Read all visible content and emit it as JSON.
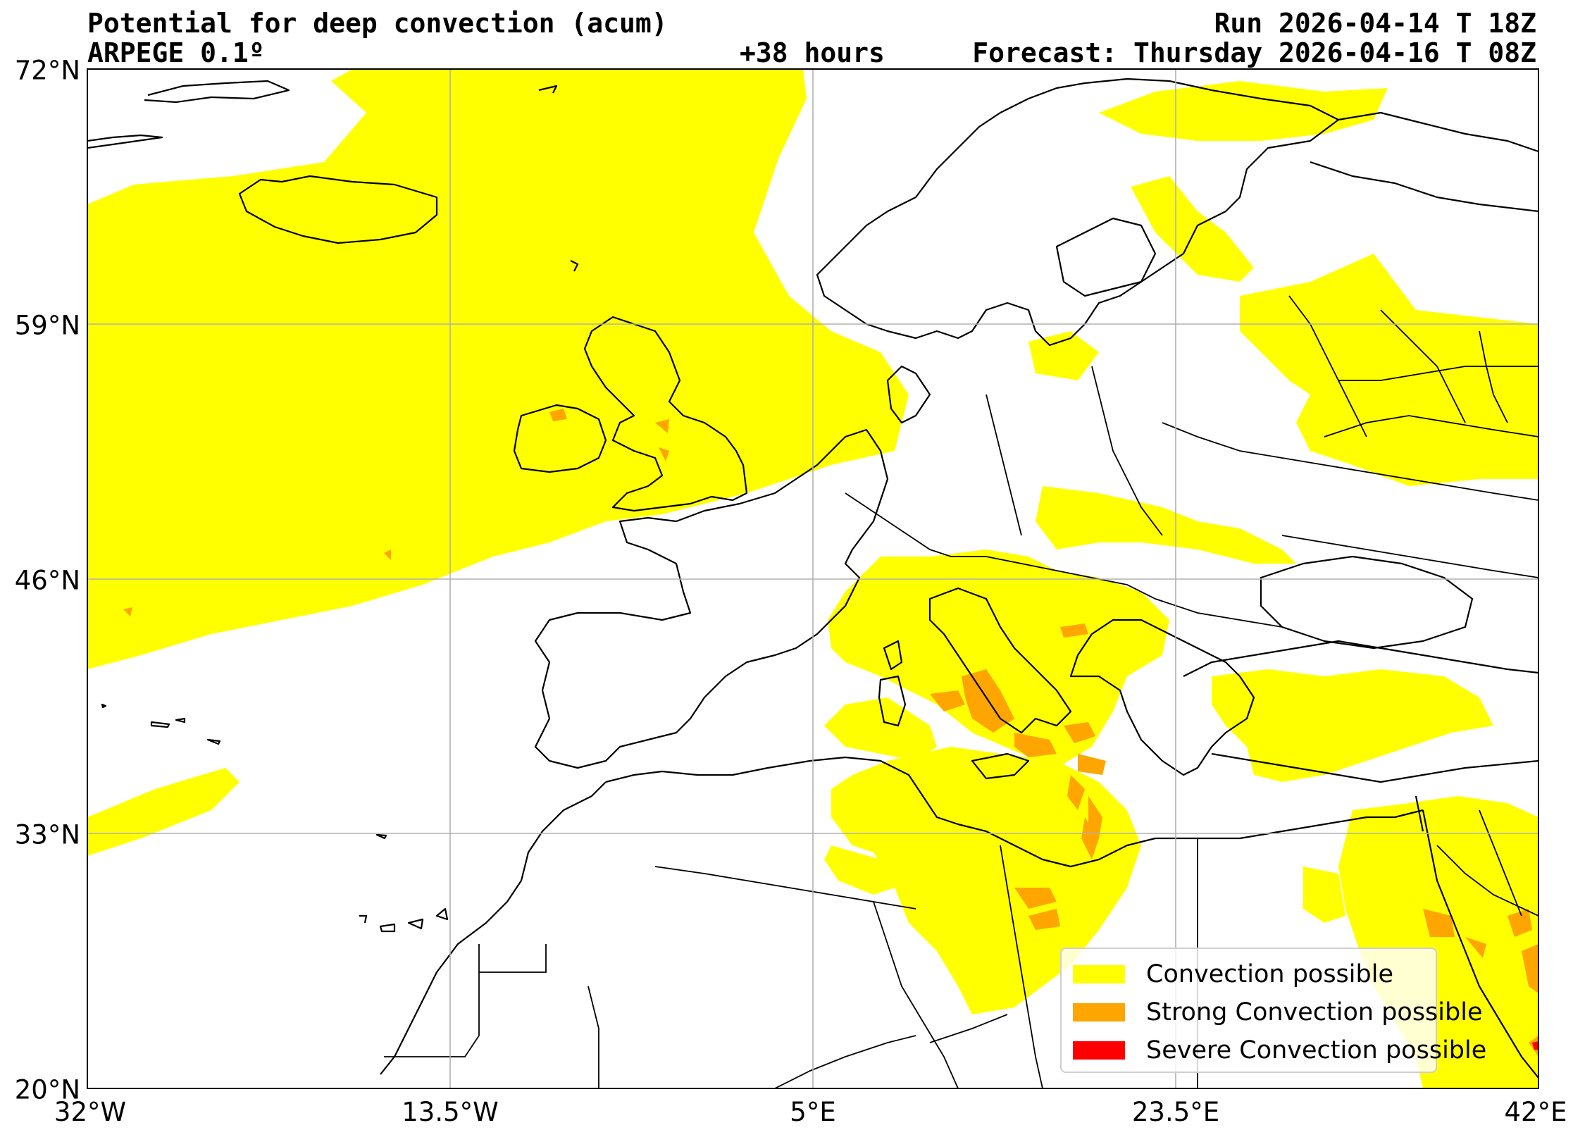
{
  "header": {
    "title": "Potential for deep convection (acum)",
    "model": "ARPEGE 0.1º",
    "lead_time": "+38 hours",
    "run": "Run 2026-04-14 T 18Z",
    "forecast": "Forecast: Thursday 2026-04-16 T 08Z"
  },
  "axes": {
    "lat_labels": [
      "72°N",
      "59°N",
      "46°N",
      "33°N",
      "20°N"
    ],
    "lon_labels": [
      "32°W",
      "13.5°W",
      "5°E",
      "23.5°E",
      "42°E"
    ]
  },
  "legend": {
    "placement": "bottom-right",
    "items": [
      {
        "label": "Convection possible",
        "color": "#ffff00"
      },
      {
        "label": "Strong Convection possible",
        "color": "#ffa500"
      },
      {
        "label": "Severe Convection possible",
        "color": "#ff0000"
      }
    ]
  },
  "colors": {
    "convection": "#ffff00",
    "strong": "#ffa500",
    "severe": "#ff0000",
    "grid": "#b0b0b0",
    "coastline": "#000000"
  }
}
